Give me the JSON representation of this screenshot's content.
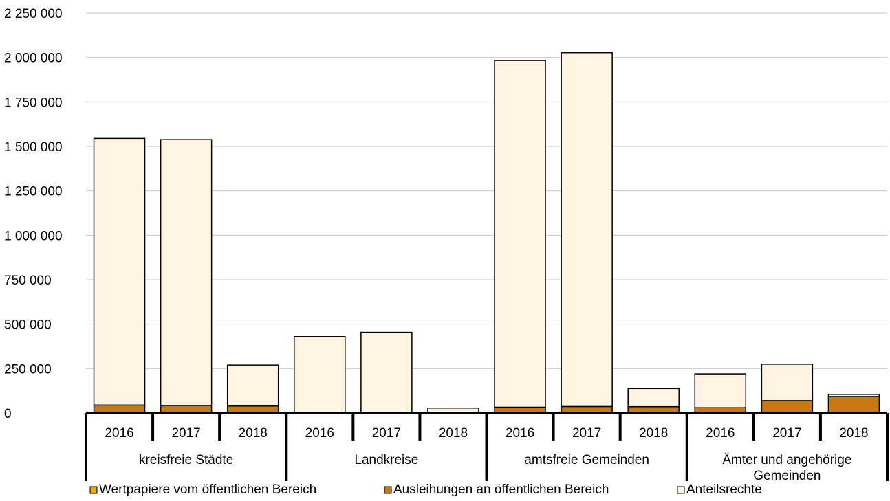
{
  "chart_data": {
    "type": "bar",
    "stacked": true,
    "y_ticks": [
      "0",
      "250 000",
      "500 000",
      "750 000",
      "1 000 000",
      "1 250 000",
      "1 500 000",
      "1 750 000",
      "2 000 000",
      "2 250 000"
    ],
    "ylim": [
      0,
      2250000
    ],
    "grid": true,
    "legend_position": "bottom",
    "groups": [
      {
        "label": "kreisfreie Städte",
        "categories": [
          "2016",
          "2017",
          "2018"
        ]
      },
      {
        "label": "Landkreise",
        "categories": [
          "2016",
          "2017",
          "2018"
        ]
      },
      {
        "label": "amtsfreie Gemeinden",
        "categories": [
          "2016",
          "2017",
          "2018"
        ]
      },
      {
        "label": "Ämter und angehörige Gemeinden",
        "categories": [
          "2016",
          "2017",
          "2018"
        ]
      }
    ],
    "series": [
      {
        "name": "Wertpapiere vom öffentlichen Bereich",
        "color": "#f0a800",
        "values": [
          0,
          0,
          0,
          0,
          0,
          0,
          0,
          0,
          0,
          0,
          0,
          0
        ]
      },
      {
        "name": "Ausleihungen an öffentlichen Bereich",
        "color": "#c87812",
        "values": [
          45000,
          43000,
          40000,
          2000,
          2000,
          2000,
          33000,
          37000,
          36000,
          30000,
          70000,
          93000
        ]
      },
      {
        "name": "Anteilsrechte",
        "color": "#fff3e2",
        "values": [
          1500000,
          1495000,
          230000,
          428000,
          452000,
          26000,
          1950000,
          1990000,
          102000,
          190000,
          205000,
          12000
        ]
      }
    ]
  }
}
